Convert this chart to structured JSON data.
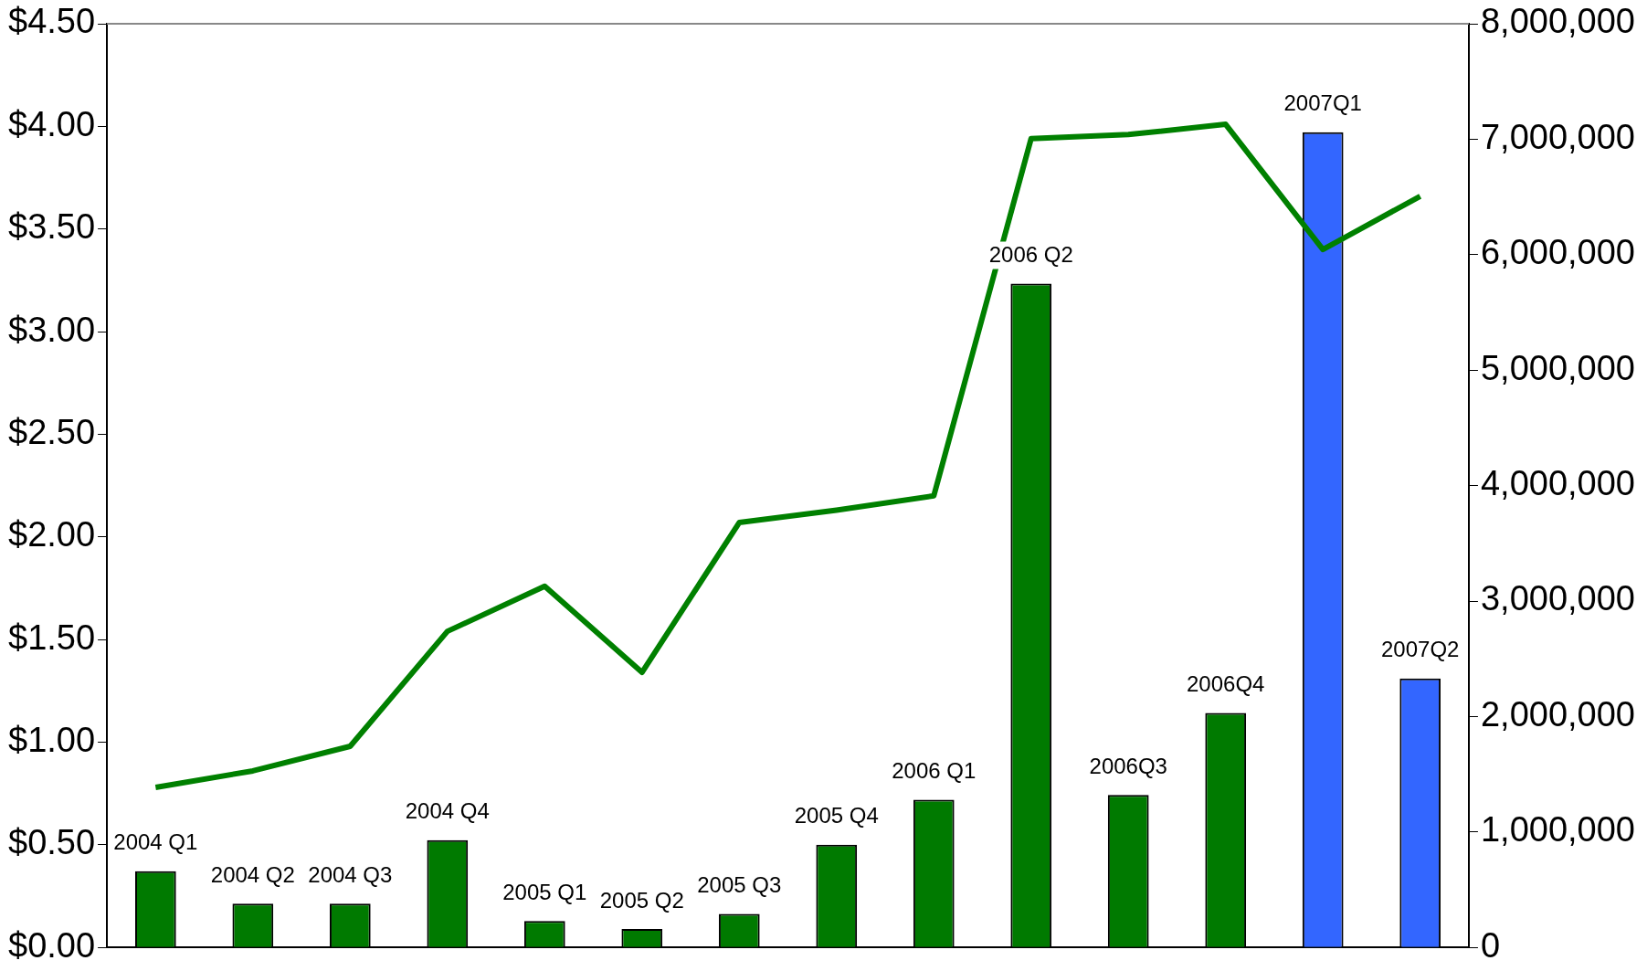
{
  "chart_data": {
    "type": "bar",
    "categories": [
      "2004 Q1",
      "2004 Q2",
      "2004 Q3",
      "2004 Q4",
      "2005 Q1",
      "2005 Q2",
      "2005 Q3",
      "2005 Q4",
      "2006 Q1",
      "2006 Q2",
      "2006Q3",
      "2006Q4",
      "2007Q1",
      "2007Q2"
    ],
    "series": [
      {
        "axis": "y2",
        "colors": [
          "#007a00",
          "#007a00",
          "#007a00",
          "#007a00",
          "#007a00",
          "#007a00",
          "#007a00",
          "#007a00",
          "#007a00",
          "#007a00",
          "#007a00",
          "#007a00",
          "#3366ff",
          "#3366ff"
        ],
        "values": [
          660000,
          380000,
          380000,
          930000,
          230000,
          160000,
          290000,
          890000,
          1280000,
          5750000,
          1320000,
          2030000,
          7060000,
          2330000
        ]
      },
      {
        "type": "line",
        "axis": "y",
        "color": "#008000",
        "values": [
          0.78,
          0.86,
          0.98,
          1.54,
          1.76,
          1.34,
          2.07,
          2.13,
          2.2,
          3.94,
          3.96,
          4.01,
          3.4,
          3.66
        ]
      }
    ],
    "ylim": [
      0,
      4.5
    ],
    "yticks": [
      {
        "value": 0,
        "label": "$0.00"
      },
      {
        "value": 0.5,
        "label": "$0.50"
      },
      {
        "value": 1,
        "label": "$1.00"
      },
      {
        "value": 1.5,
        "label": "$1.50"
      },
      {
        "value": 2,
        "label": "$2.00"
      },
      {
        "value": 2.5,
        "label": "$2.50"
      },
      {
        "value": 3,
        "label": "$3.00"
      },
      {
        "value": 3.5,
        "label": "$3.50"
      },
      {
        "value": 4,
        "label": "$4.00"
      },
      {
        "value": 4.5,
        "label": "$4.50"
      }
    ],
    "y2lim": [
      0,
      8000000
    ],
    "y2ticks": [
      {
        "value": 0,
        "label": "0"
      },
      {
        "value": 1000000,
        "label": "1,000,000"
      },
      {
        "value": 2000000,
        "label": "2,000,000"
      },
      {
        "value": 3000000,
        "label": "3,000,000"
      },
      {
        "value": 4000000,
        "label": "4,000,000"
      },
      {
        "value": 5000000,
        "label": "5,000,000"
      },
      {
        "value": 6000000,
        "label": "6,000,000"
      },
      {
        "value": 7000000,
        "label": "7,000,000"
      },
      {
        "value": 8000000,
        "label": "8,000,000"
      }
    ],
    "grid": false,
    "legend": false,
    "marker": "none",
    "line_style": "solid"
  }
}
